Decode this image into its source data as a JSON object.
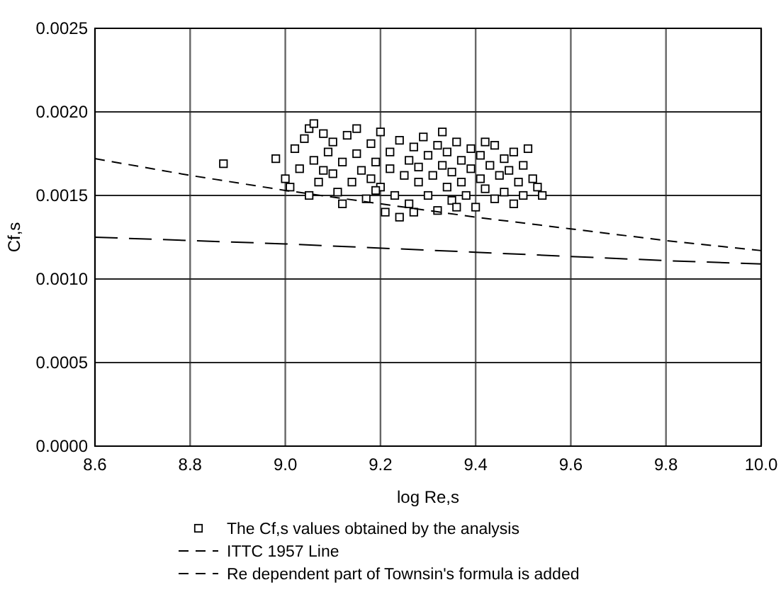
{
  "chart_data": {
    "type": "scatter",
    "xlabel": "log Re,s",
    "ylabel": "Cf,s",
    "xlim": [
      8.6,
      10.0
    ],
    "ylim": [
      0,
      0.0025
    ],
    "xticks": [
      {
        "value": 8.6,
        "label": "8.6"
      },
      {
        "value": 8.8,
        "label": "8.8"
      },
      {
        "value": 9.0,
        "label": "9.0"
      },
      {
        "value": 9.2,
        "label": "9.2"
      },
      {
        "value": 9.4,
        "label": "9.4"
      },
      {
        "value": 9.6,
        "label": "9.6"
      },
      {
        "value": 9.8,
        "label": "9.8"
      },
      {
        "value": 10.0,
        "label": "10.0"
      }
    ],
    "yticks": [
      {
        "value": 0,
        "label": "0.0000"
      },
      {
        "value": 0.0005,
        "label": "0.0005"
      },
      {
        "value": 0.001,
        "label": "0.0010"
      },
      {
        "value": 0.0015,
        "label": "0.0015"
      },
      {
        "value": 0.002,
        "label": "0.0020"
      },
      {
        "value": 0.0025,
        "label": "0.0025"
      }
    ],
    "grid": true,
    "legend": "bottom",
    "series": [
      {
        "name": "The Cf,s values obtained by the analysis",
        "color": "#000000",
        "marker": "square",
        "x": [
          8.87,
          8.98,
          9.0,
          9.01,
          9.02,
          9.03,
          9.04,
          9.05,
          9.06,
          9.06,
          9.07,
          9.08,
          9.09,
          9.1,
          9.1,
          9.11,
          9.12,
          9.13,
          9.14,
          9.15,
          9.16,
          9.17,
          9.18,
          9.18,
          9.19,
          9.2,
          9.2,
          9.21,
          9.22,
          9.22,
          9.23,
          9.24,
          9.24,
          9.25,
          9.26,
          9.26,
          9.27,
          9.28,
          9.28,
          9.29,
          9.3,
          9.3,
          9.31,
          9.32,
          9.32,
          9.33,
          9.34,
          9.34,
          9.35,
          9.35,
          9.36,
          9.37,
          9.37,
          9.38,
          9.39,
          9.39,
          9.4,
          9.41,
          9.41,
          9.42,
          9.43,
          9.44,
          9.44,
          9.45,
          9.46,
          9.46,
          9.47,
          9.48,
          9.48,
          9.49,
          9.5,
          9.5,
          9.51,
          9.52,
          9.53,
          9.54,
          9.12,
          9.27,
          9.19,
          9.33,
          9.05,
          9.08,
          9.15,
          9.42,
          9.36
        ],
        "values": [
          0.00169,
          0.00172,
          0.0016,
          0.00155,
          0.00178,
          0.00166,
          0.00184,
          0.0019,
          0.00193,
          0.00171,
          0.00158,
          0.00187,
          0.00176,
          0.00163,
          0.00182,
          0.00152,
          0.0017,
          0.00186,
          0.00158,
          0.00175,
          0.00165,
          0.00148,
          0.00181,
          0.0016,
          0.0017,
          0.00155,
          0.00188,
          0.0014,
          0.00166,
          0.00176,
          0.0015,
          0.00137,
          0.00183,
          0.00162,
          0.00171,
          0.00145,
          0.00179,
          0.00158,
          0.00167,
          0.00185,
          0.0015,
          0.00174,
          0.00162,
          0.00141,
          0.0018,
          0.00168,
          0.00155,
          0.00176,
          0.00147,
          0.00164,
          0.00182,
          0.00158,
          0.00171,
          0.0015,
          0.00166,
          0.00178,
          0.00143,
          0.0016,
          0.00174,
          0.00154,
          0.00168,
          0.00148,
          0.0018,
          0.00162,
          0.00172,
          0.00152,
          0.00165,
          0.00145,
          0.00176,
          0.00158,
          0.00168,
          0.0015,
          0.00178,
          0.0016,
          0.00155,
          0.0015,
          0.00145,
          0.0014,
          0.00153,
          0.00188,
          0.0015,
          0.00165,
          0.0019,
          0.00182,
          0.00143
        ]
      },
      {
        "type": "line",
        "name": "ITTC 1957 Line",
        "color": "#000000",
        "line_style": "dashed",
        "marker": "none",
        "x": [
          8.6,
          8.8,
          9.0,
          9.2,
          9.4,
          9.6,
          9.8,
          10.0
        ],
        "values": [
          0.00172,
          0.00162,
          0.00153,
          0.00145,
          0.00137,
          0.0013,
          0.00123,
          0.00117
        ]
      },
      {
        "type": "line",
        "name": "Re dependent part of Townsin's formula is added",
        "color": "#000000",
        "line_style": "dashed",
        "marker": "none",
        "x": [
          8.6,
          9.0,
          9.4,
          9.8,
          10.0
        ],
        "values": [
          0.00125,
          0.00121,
          0.00116,
          0.00111,
          0.00109
        ]
      }
    ]
  }
}
